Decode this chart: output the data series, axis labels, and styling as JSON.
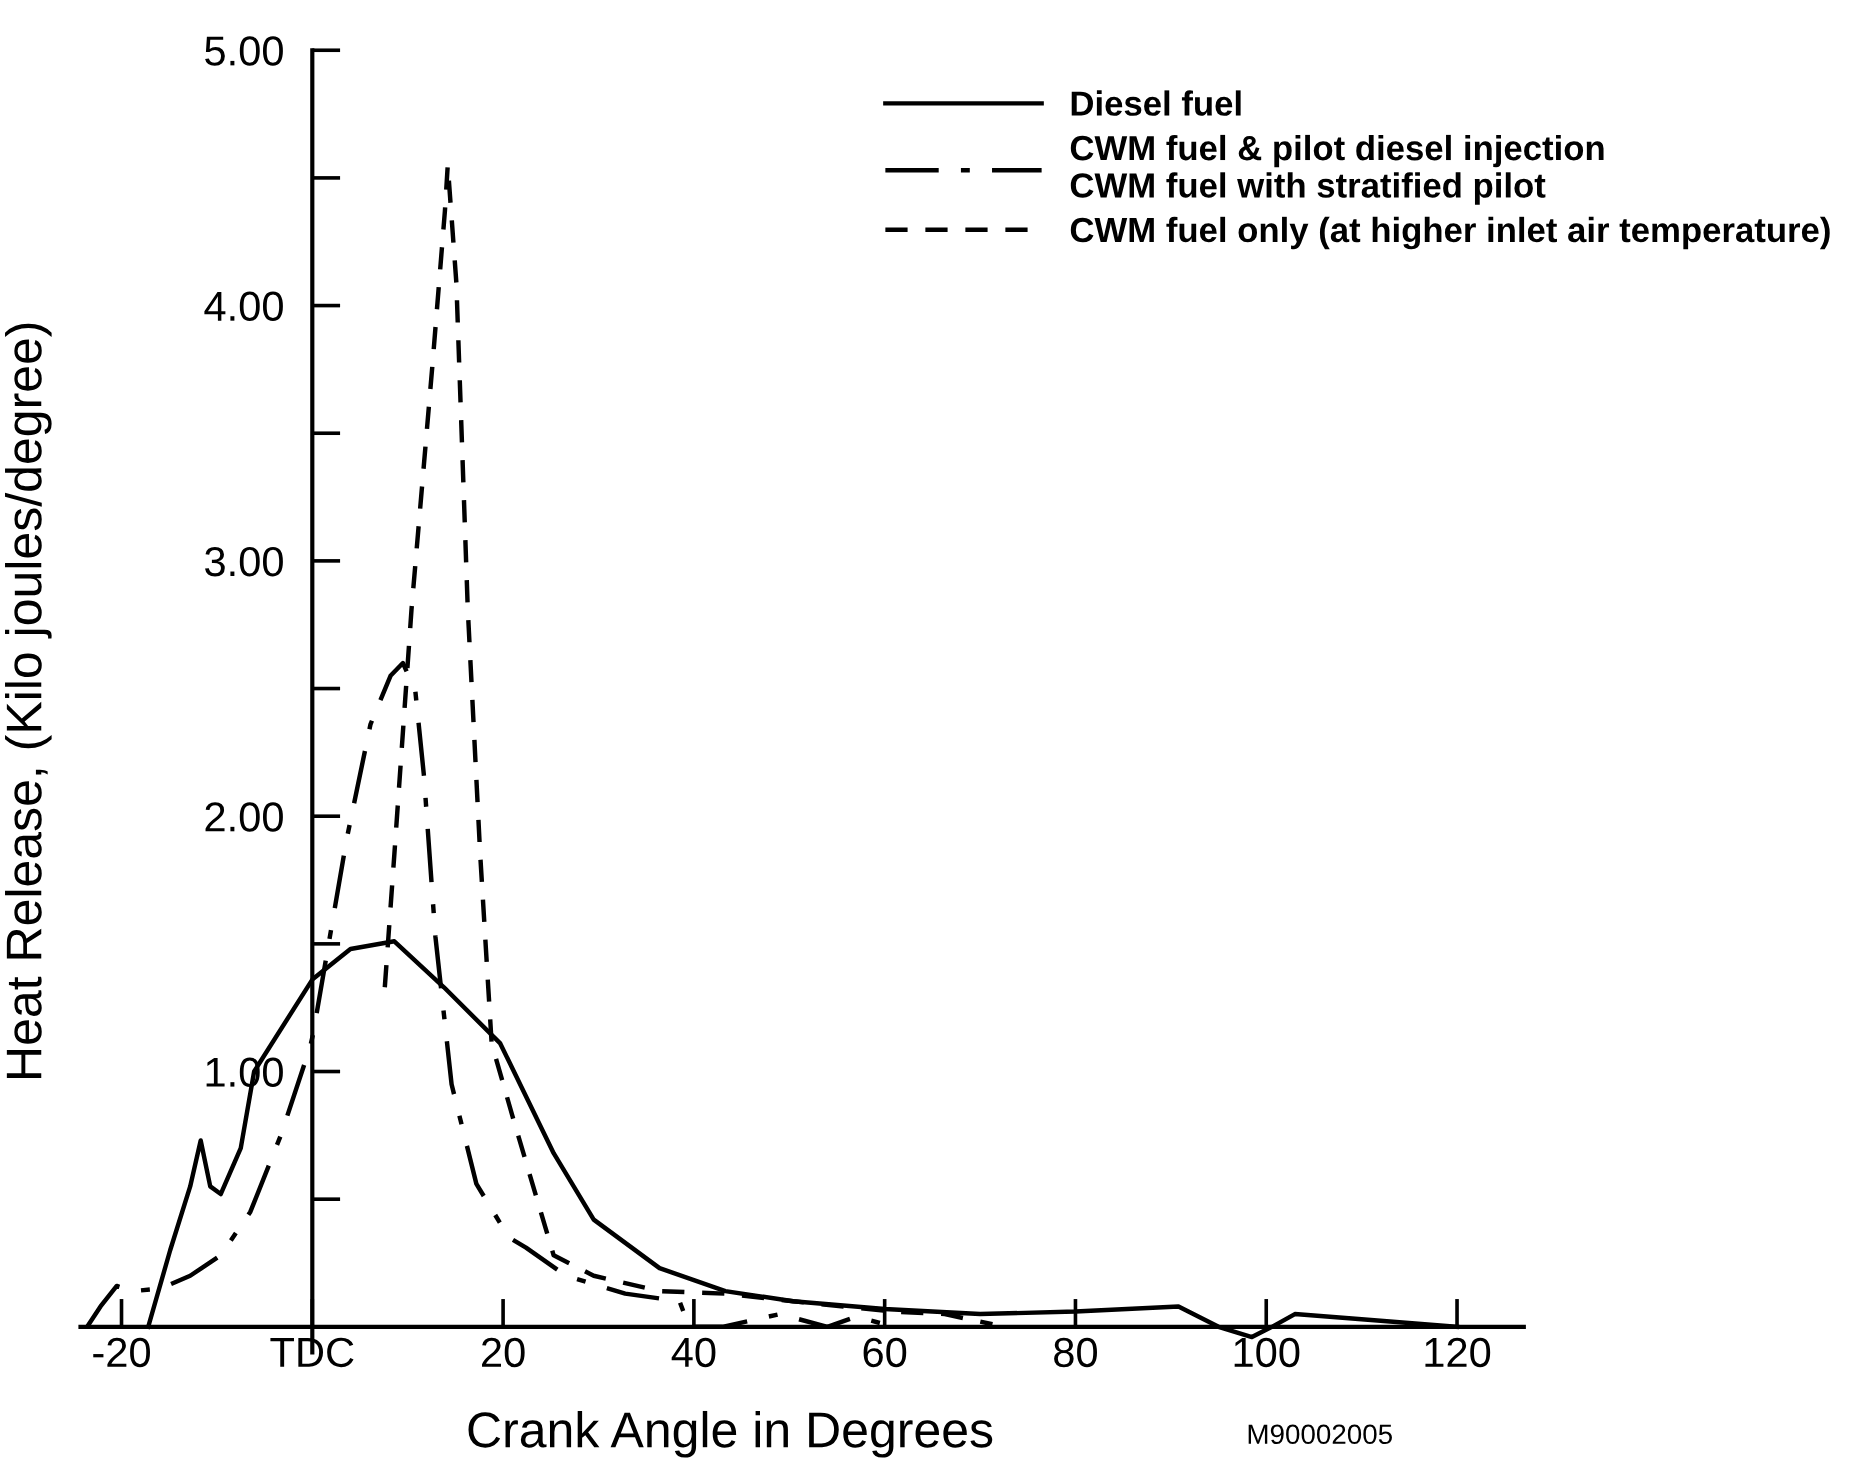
{
  "chart_data": {
    "type": "line",
    "xlabel": "Crank Angle in Degrees",
    "ylabel": "Heat Release, (Kilo joules/degree)",
    "annotations": [
      "M90002005"
    ],
    "xlim": [
      -24.3,
      127
    ],
    "ylim": [
      -0.1,
      5.0
    ],
    "xticks": [
      -20,
      {
        "value": 0,
        "label": "TDC"
      },
      20,
      40,
      60,
      80,
      100,
      120
    ],
    "yticks": [
      {
        "value": 0.5,
        "label": null
      },
      "1.00",
      {
        "value": 1.5,
        "label": null
      },
      {
        "value": 2,
        "label": "2.00"
      },
      {
        "value": 2.5,
        "label": null
      },
      {
        "value": 3,
        "label": "3.00"
      },
      {
        "value": 3.5,
        "label": null
      },
      {
        "value": 4,
        "label": "4.00"
      },
      {
        "value": 4.5,
        "label": null
      },
      {
        "value": 5,
        "label": "5.00"
      }
    ],
    "grid": false,
    "legend": "top right",
    "marker": "none",
    "series": [
      {
        "name": "Diesel fuel",
        "color": "#000000",
        "line_style": "solid",
        "x": [
          -17.2,
          -14.9,
          -12.8,
          -11.7,
          -10.7,
          -9.6,
          -7.5,
          -6.1,
          0,
          4,
          8.6,
          13.8,
          19.7,
          25.3,
          29.5,
          36.4,
          43.3,
          50.4,
          60,
          70,
          80,
          90.8,
          95,
          98.5,
          100.6,
          103,
          110,
          120
        ],
        "values": [
          0,
          0.3,
          0.55,
          0.73,
          0.55,
          0.52,
          0.7,
          1.0,
          1.36,
          1.48,
          1.51,
          1.33,
          1.11,
          0.68,
          0.42,
          0.23,
          0.14,
          0.1,
          0.07,
          0.05,
          0.06,
          0.08,
          0,
          -0.04,
          0,
          0.05,
          0.03,
          0
        ]
      },
      {
        "name": "CWM fuel & pilot diesel injection\nCWM fuel with stratified pilot",
        "color": "#000000",
        "line_style": "dashdot",
        "x": [
          -23.6,
          -22.2,
          -20.5,
          -18.8,
          -15.9,
          -12.8,
          -9.6,
          -6.5,
          -3.3,
          -0.2,
          0.1,
          3.6,
          6.1,
          8.2,
          9.5,
          10.8,
          11.7,
          12.9,
          14.6,
          17.2,
          20.6,
          22.4,
          26.6,
          32.8,
          38.5,
          39.5,
          43,
          49,
          54,
          57,
          61
        ],
        "values": [
          0,
          0.08,
          0.16,
          0.14,
          0.15,
          0.2,
          0.28,
          0.45,
          0.75,
          1.1,
          1.15,
          1.91,
          2.36,
          2.55,
          2.6,
          2.49,
          2.16,
          1.53,
          0.95,
          0.56,
          0.35,
          0.31,
          0.2,
          0.13,
          0.1,
          0,
          0,
          0.05,
          0,
          0.04,
          0
        ]
      },
      {
        "name": "CWM fuel only (at higher inlet air temperature)",
        "color": "#000000",
        "line_style": "dashed",
        "x": [
          7.6,
          8.6,
          10.4,
          12.6,
          13.9,
          14.2,
          15.1,
          16.3,
          17.6,
          18.8,
          21.1,
          25.3,
          29.5,
          36.4,
          43.3,
          50.4,
          60.9,
          66.3,
          71.3
        ],
        "values": [
          1.33,
          1.85,
          2.81,
          3.77,
          4.37,
          4.55,
          4.09,
          2.81,
          1.85,
          1.11,
          0.81,
          0.28,
          0.2,
          0.14,
          0.13,
          0.1,
          0.06,
          0.05,
          0.01
        ]
      }
    ]
  }
}
